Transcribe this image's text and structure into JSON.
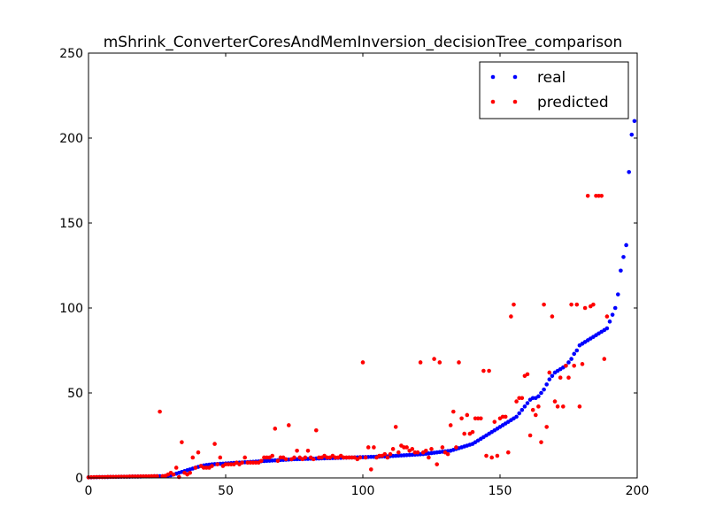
{
  "chart_data": {
    "type": "scatter",
    "title": "mShrink_ConverterCoresAndMemInversion_decisionTree_comparison",
    "xlabel": "",
    "ylabel": "",
    "xlim": [
      0,
      200
    ],
    "ylim": [
      0,
      250
    ],
    "xticks": [
      0,
      50,
      100,
      150,
      200
    ],
    "yticks": [
      0,
      50,
      100,
      150,
      200,
      250
    ],
    "grid": false,
    "legend_position": "top-right",
    "series": [
      {
        "name": "real",
        "color": "#0000ff",
        "values": [
          0.3,
          0.3,
          0.4,
          0.4,
          0.5,
          0.5,
          0.5,
          0.5,
          0.6,
          0.6,
          0.6,
          0.6,
          0.7,
          0.7,
          0.7,
          0.7,
          0.8,
          0.8,
          0.8,
          0.8,
          0.9,
          0.9,
          0.9,
          0.9,
          1,
          1,
          1,
          1,
          1.2,
          1.2,
          1.5,
          2,
          2.5,
          3,
          3.5,
          4,
          4.5,
          5,
          5.5,
          6,
          6.5,
          7,
          7.3,
          7.6,
          7.8,
          8,
          8.1,
          8.2,
          8.3,
          8.4,
          8.5,
          8.6,
          8.7,
          8.8,
          8.9,
          9,
          9.1,
          9.2,
          9.3,
          9.4,
          9.5,
          9.6,
          9.7,
          9.8,
          9.9,
          10,
          10.1,
          10.2,
          10.3,
          10.4,
          10.5,
          10.6,
          10.7,
          10.8,
          10.9,
          11,
          11,
          11.1,
          11.1,
          11.2,
          11.2,
          11.3,
          11.3,
          11.4,
          11.4,
          11.5,
          11.5,
          11.6,
          11.6,
          11.7,
          11.7,
          11.8,
          11.8,
          11.9,
          11.9,
          12,
          12,
          12.1,
          12.1,
          12.2,
          12.2,
          12.3,
          12.3,
          12.4,
          12.4,
          12.5,
          12.5,
          12.6,
          12.6,
          12.7,
          12.8,
          12.9,
          13,
          13.1,
          13.2,
          13.3,
          13.4,
          13.5,
          13.6,
          13.7,
          13.8,
          13.9,
          14,
          14.2,
          14.4,
          14.6,
          14.8,
          15,
          15.2,
          15.4,
          15.6,
          15.8,
          16,
          16.5,
          17,
          17.5,
          18,
          18.5,
          19,
          19.5,
          20,
          21,
          22,
          23,
          24,
          25,
          26,
          27,
          28,
          29,
          30,
          31,
          32,
          33,
          34,
          35,
          36,
          38,
          40,
          42,
          44,
          46,
          47,
          47,
          48,
          50,
          52,
          55,
          58,
          60,
          62,
          63,
          64,
          65,
          66,
          68,
          70,
          73,
          75,
          78,
          79,
          80,
          81,
          82,
          83,
          84,
          85,
          86,
          87,
          88,
          92,
          96,
          100,
          108,
          122,
          130,
          137,
          180,
          202,
          210
        ]
      },
      {
        "name": "predicted",
        "color": "#ff0000",
        "values": [
          0.3,
          0.4,
          0.4,
          0.5,
          0.5,
          0.5,
          0.5,
          0.6,
          0.6,
          0.6,
          0.6,
          0.7,
          0.7,
          0.7,
          0.7,
          0.8,
          0.8,
          0.8,
          0.8,
          0.9,
          0.9,
          0.9,
          0.9,
          1,
          1,
          1,
          39,
          1,
          1.2,
          2,
          3,
          2,
          6,
          0.5,
          21,
          3,
          2,
          3,
          12,
          6,
          15,
          7,
          6,
          6,
          6,
          7,
          20,
          8,
          12,
          7,
          8,
          8,
          8,
          8,
          9,
          8,
          9,
          12,
          9,
          9,
          9,
          9,
          9,
          10,
          12,
          12,
          12,
          13,
          29,
          10,
          12,
          12,
          11,
          31,
          11,
          12,
          16,
          12,
          11,
          12,
          16,
          12,
          11,
          28,
          12,
          12,
          13,
          12,
          12,
          13,
          12,
          12,
          13,
          12,
          12,
          12,
          12,
          12,
          11,
          12,
          68,
          12,
          18,
          5,
          18,
          12,
          13,
          13,
          14,
          12,
          14,
          17,
          30,
          15,
          19,
          18,
          18,
          16,
          17,
          15,
          15,
          68,
          15,
          16,
          12,
          17,
          70,
          8,
          68,
          18,
          15,
          14,
          31,
          39,
          18,
          68,
          35,
          26,
          37,
          26,
          27,
          35,
          35,
          35,
          63,
          13,
          63,
          12,
          33,
          13,
          35,
          36,
          36,
          15,
          95,
          102,
          45,
          47,
          47,
          60,
          61,
          25,
          40,
          37,
          42,
          21,
          102,
          30,
          62,
          95,
          45,
          42,
          59,
          42,
          66,
          59,
          102,
          66,
          102,
          42,
          67,
          100,
          166,
          101,
          102,
          166,
          166,
          166,
          70,
          95
        ]
      }
    ]
  }
}
